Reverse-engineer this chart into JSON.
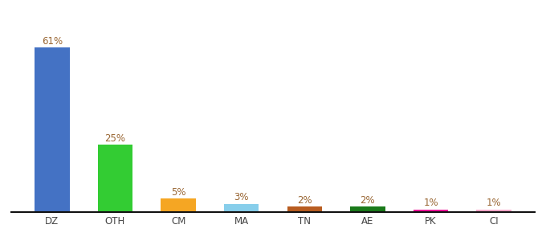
{
  "categories": [
    "DZ",
    "OTH",
    "CM",
    "MA",
    "TN",
    "AE",
    "PK",
    "CI"
  ],
  "values": [
    61,
    25,
    5,
    3,
    2,
    2,
    1,
    1
  ],
  "labels": [
    "61%",
    "25%",
    "5%",
    "3%",
    "2%",
    "2%",
    "1%",
    "1%"
  ],
  "bar_colors": [
    "#4472c4",
    "#33cc33",
    "#f5a623",
    "#87ceeb",
    "#b85c20",
    "#1a7a1a",
    "#ee1199",
    "#ffaacc"
  ],
  "background_color": "#ffffff",
  "label_color": "#996633",
  "label_fontsize": 8.5,
  "xlabel_fontsize": 8.5,
  "ylim": [
    0,
    68
  ],
  "bar_width": 0.55
}
